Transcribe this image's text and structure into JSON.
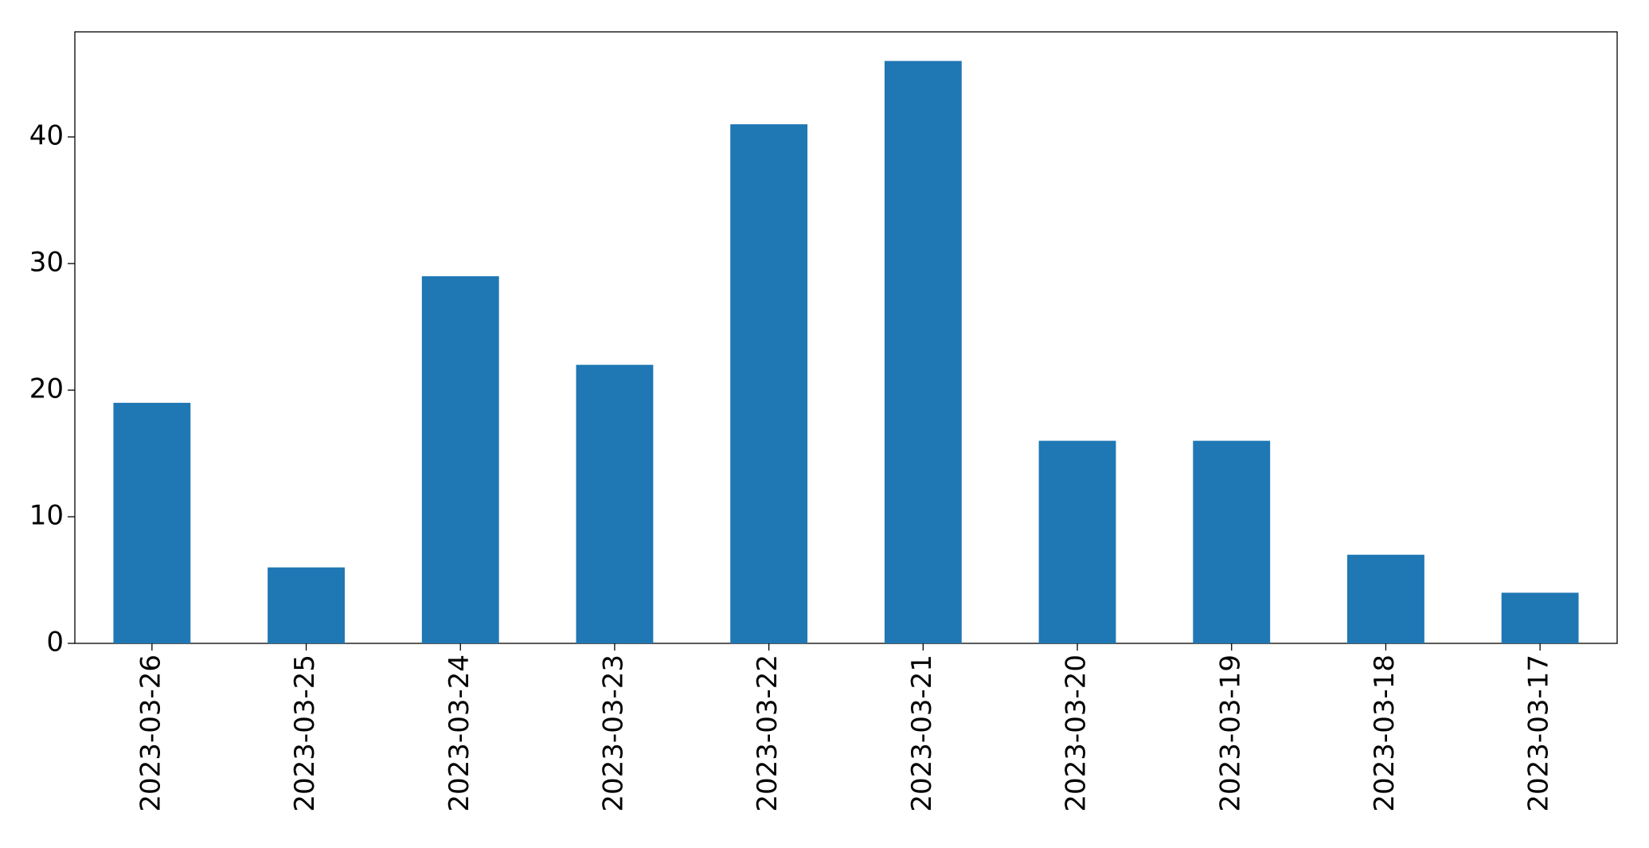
{
  "chart_data": {
    "type": "bar",
    "categories": [
      "2023-03-26",
      "2023-03-25",
      "2023-03-24",
      "2023-03-23",
      "2023-03-22",
      "2023-03-21",
      "2023-03-20",
      "2023-03-19",
      "2023-03-18",
      "2023-03-17"
    ],
    "values": [
      19,
      6,
      29,
      22,
      41,
      46,
      16,
      16,
      7,
      4
    ],
    "color": "#1f77b4",
    "ylim": [
      0,
      48.3
    ],
    "yticks": [
      0,
      10,
      20,
      30,
      40
    ],
    "grid": false
  }
}
